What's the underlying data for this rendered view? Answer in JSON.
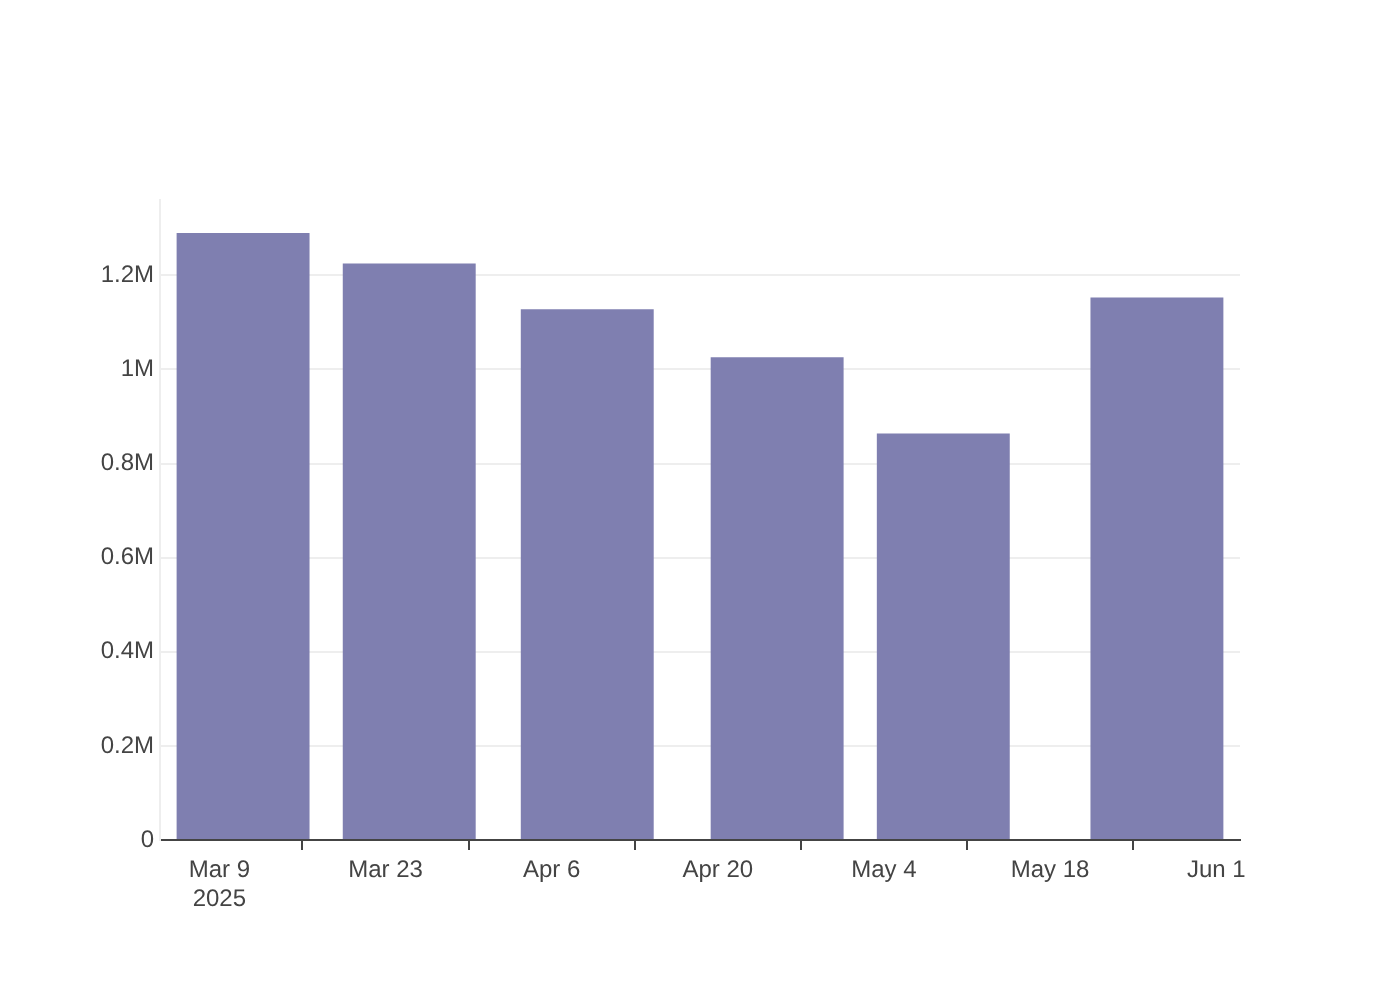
{
  "chart_data": {
    "type": "bar",
    "x": [
      "2025-03-11",
      "2025-03-25",
      "2025-04-09",
      "2025-04-25",
      "2025-05-09",
      "2025-05-27"
    ],
    "values": [
      1290000,
      1225000,
      1128000,
      1026000,
      864000,
      1153000
    ],
    "color": "#7f7fb0",
    "xlim": [
      "2025-03-04",
      "2025-06-03"
    ],
    "xticks": [
      {
        "value": "2025-03-09",
        "label": "Mar 9\n2025"
      },
      {
        "value": "2025-03-23",
        "label": "Mar 23"
      },
      {
        "value": "2025-04-06",
        "label": "Apr 6"
      },
      {
        "value": "2025-04-20",
        "label": "Apr 20"
      },
      {
        "value": "2025-05-04",
        "label": "May 4"
      },
      {
        "value": "2025-05-18",
        "label": "May 18"
      },
      {
        "value": "2025-06-01",
        "label": "Jun 1"
      }
    ],
    "ylim": [
      0,
      1360000
    ],
    "yticks": [
      0,
      {
        "value": 200000,
        "label": "0.2M"
      },
      {
        "value": 400000,
        "label": "0.4M"
      },
      {
        "value": 600000,
        "label": "0.6M"
      },
      {
        "value": 800000,
        "label": "0.8M"
      },
      {
        "value": 1000000,
        "label": "1M"
      },
      {
        "value": 1200000,
        "label": "1.2M"
      }
    ],
    "grid": "y"
  }
}
